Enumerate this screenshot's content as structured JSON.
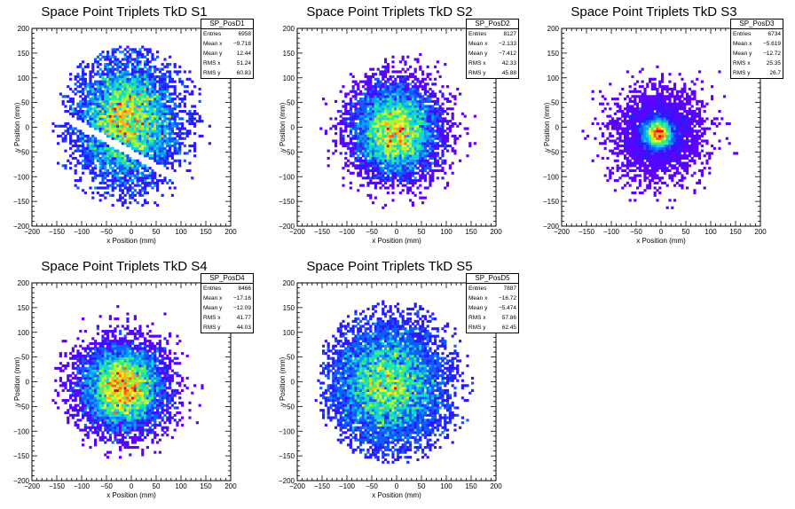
{
  "panels": [
    {
      "title": "Space Point Triplets TkD S1",
      "stats": {
        "name": "SP_PosD1",
        "rows": [
          {
            "label": "Entries",
            "value": "6958"
          },
          {
            "label": "Mean x",
            "value": "−9.718"
          },
          {
            "label": "Mean y",
            "value": "12.44"
          },
          {
            "label": "RMS x",
            "value": "51.24"
          },
          {
            "label": "RMS y",
            "value": "60.83"
          }
        ]
      }
    },
    {
      "title": "Space Point Triplets TkD S2",
      "stats": {
        "name": "SP_PosD2",
        "rows": [
          {
            "label": "Entries",
            "value": "8127"
          },
          {
            "label": "Mean x",
            "value": "−2.133"
          },
          {
            "label": "Mean y",
            "value": "−7.412"
          },
          {
            "label": "RMS x",
            "value": "42.33"
          },
          {
            "label": "RMS y",
            "value": "45.88"
          }
        ]
      }
    },
    {
      "title": "Space Point Triplets TkD S3",
      "stats": {
        "name": "SP_PosD3",
        "rows": [
          {
            "label": "Entries",
            "value": "6734"
          },
          {
            "label": "Mean x",
            "value": "−5.619"
          },
          {
            "label": "Mean y",
            "value": "−12.72"
          },
          {
            "label": "RMS x",
            "value": "25.35"
          },
          {
            "label": "RMS y",
            "value": "26.7"
          }
        ]
      }
    },
    {
      "title": "Space Point Triplets TkD S4",
      "stats": {
        "name": "SP_PosD4",
        "rows": [
          {
            "label": "Entries",
            "value": "8466"
          },
          {
            "label": "Mean x",
            "value": "−17.16"
          },
          {
            "label": "Mean y",
            "value": "−12.09"
          },
          {
            "label": "RMS x",
            "value": "41.77"
          },
          {
            "label": "RMS y",
            "value": "44.03"
          }
        ]
      }
    },
    {
      "title": "Space Point Triplets TkD S5",
      "stats": {
        "name": "SP_PosD5",
        "rows": [
          {
            "label": "Entries",
            "value": "7887"
          },
          {
            "label": "Mean x",
            "value": "−16.72"
          },
          {
            "label": "Mean y",
            "value": "−5.474"
          },
          {
            "label": "RMS x",
            "value": "57.86"
          },
          {
            "label": "RMS y",
            "value": "62.45"
          }
        ]
      }
    }
  ],
  "chart_data": [
    {
      "type": "heatmap",
      "title": "Space Point Triplets TkD S1",
      "xlabel": "x Position (mm)",
      "ylabel": "y Position (mm)",
      "xlim": [
        -200,
        200
      ],
      "ylim": [
        -200,
        200
      ],
      "xticks": [
        -200,
        -150,
        -100,
        -50,
        0,
        50,
        100,
        150,
        200
      ],
      "yticks": [
        -200,
        -150,
        -100,
        -50,
        0,
        50,
        100,
        150,
        200
      ],
      "xticklabels": [
        "−200",
        "−150",
        "−100",
        "−50",
        "0",
        "50",
        "100",
        "150",
        "200"
      ],
      "yticklabels": [
        "−200",
        "−150",
        "−100",
        "−50",
        "0",
        "50",
        "100",
        "150",
        "200"
      ],
      "entries": 6958,
      "mean_x": -9.718,
      "mean_y": 12.44,
      "rms_x": 51.24,
      "rms_y": 60.83,
      "colormap": "rainbow",
      "notes_gap": "diagonal empty band crossing lower half of detector"
    },
    {
      "type": "heatmap",
      "title": "Space Point Triplets TkD S2",
      "xlabel": "x Position (mm)",
      "ylabel": "y Position (mm)",
      "xlim": [
        -200,
        200
      ],
      "ylim": [
        -200,
        200
      ],
      "xticks": [
        -200,
        -150,
        -100,
        -50,
        0,
        50,
        100,
        150,
        200
      ],
      "yticks": [
        -200,
        -150,
        -100,
        -50,
        0,
        50,
        100,
        150,
        200
      ],
      "xticklabels": [
        "−200",
        "−150",
        "−100",
        "−50",
        "0",
        "50",
        "100",
        "150",
        "200"
      ],
      "yticklabels": [
        "−200",
        "−150",
        "−100",
        "−50",
        "0",
        "50",
        "100",
        "150",
        "200"
      ],
      "entries": 8127,
      "mean_x": -2.133,
      "mean_y": -7.412,
      "rms_x": 42.33,
      "rms_y": 45.88,
      "colormap": "rainbow"
    },
    {
      "type": "heatmap",
      "title": "Space Point Triplets TkD S3",
      "xlabel": "x Position (mm)",
      "ylabel": "y Position (mm)",
      "xlim": [
        -200,
        200
      ],
      "ylim": [
        -200,
        200
      ],
      "xticks": [
        -200,
        -150,
        -100,
        -50,
        0,
        50,
        100,
        150,
        200
      ],
      "yticks": [
        -200,
        -150,
        -100,
        -50,
        0,
        50,
        100,
        150,
        200
      ],
      "xticklabels": [
        "−200",
        "−150",
        "−100",
        "−50",
        "0",
        "50",
        "100",
        "150",
        "200"
      ],
      "yticklabels": [
        "−200",
        "−150",
        "−100",
        "−50",
        "0",
        "50",
        "100",
        "150",
        "200"
      ],
      "entries": 6734,
      "mean_x": -5.619,
      "mean_y": -12.72,
      "rms_x": 25.35,
      "rms_y": 26.7,
      "colormap": "rainbow"
    },
    {
      "type": "heatmap",
      "title": "Space Point Triplets TkD S4",
      "xlabel": "x Position (mm)",
      "ylabel": "y Position (mm)",
      "xlim": [
        -200,
        200
      ],
      "ylim": [
        -200,
        200
      ],
      "xticks": [
        -200,
        -150,
        -100,
        -50,
        0,
        50,
        100,
        150,
        200
      ],
      "yticks": [
        -200,
        -150,
        -100,
        -50,
        0,
        50,
        100,
        150,
        200
      ],
      "xticklabels": [
        "−200",
        "−150",
        "−100",
        "−50",
        "0",
        "50",
        "100",
        "150",
        "200"
      ],
      "yticklabels": [
        "−200",
        "−150",
        "−100",
        "−50",
        "0",
        "50",
        "100",
        "150",
        "200"
      ],
      "entries": 8466,
      "mean_x": -17.16,
      "mean_y": -12.09,
      "rms_x": 41.77,
      "rms_y": 44.03,
      "colormap": "rainbow"
    },
    {
      "type": "heatmap",
      "title": "Space Point Triplets TkD S5",
      "xlabel": "x Position (mm)",
      "ylabel": "y Position (mm)",
      "xlim": [
        -200,
        200
      ],
      "ylim": [
        -200,
        200
      ],
      "xticks": [
        -200,
        -150,
        -100,
        -50,
        0,
        50,
        100,
        150,
        200
      ],
      "yticks": [
        -200,
        -150,
        -100,
        -50,
        0,
        50,
        100,
        150,
        200
      ],
      "xticklabels": [
        "−200",
        "−150",
        "−100",
        "−50",
        "0",
        "50",
        "100",
        "150",
        "200"
      ],
      "yticklabels": [
        "−200",
        "−150",
        "−100",
        "−50",
        "0",
        "50",
        "100",
        "150",
        "200"
      ],
      "entries": 7887,
      "mean_x": -16.72,
      "mean_y": -5.474,
      "rms_x": 57.86,
      "rms_y": 62.45,
      "colormap": "rainbow"
    }
  ]
}
